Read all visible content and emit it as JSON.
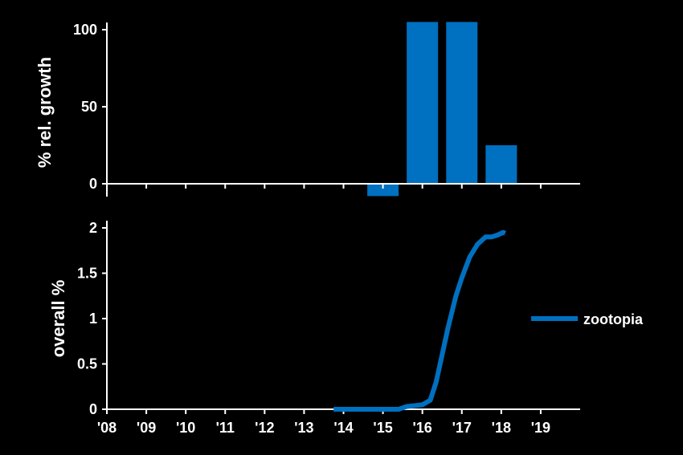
{
  "chart_data": [
    {
      "type": "bar",
      "ylabel": "% rel. growth",
      "xlim": [
        2008,
        2020
      ],
      "ylim": [
        -8,
        105
      ],
      "yticks": [
        0,
        50,
        100
      ],
      "color": "#0070C0",
      "x": [
        2015,
        2016,
        2017,
        2018
      ],
      "values": [
        -8,
        105,
        105,
        25
      ]
    },
    {
      "type": "line",
      "ylabel": "overall %",
      "xlim": [
        2008,
        2020
      ],
      "ylim": [
        0,
        2
      ],
      "yticks": [
        0,
        0.5,
        1,
        1.5,
        2
      ],
      "yticklabels": [
        "0",
        "0.5",
        "1",
        "1.5",
        "2"
      ],
      "xticklabels": [
        "'08",
        "'09",
        "'10",
        "'11",
        "'12",
        "'13",
        "'14",
        "'15",
        "'16",
        "'17",
        "'18",
        "'19"
      ],
      "legend_position": "right",
      "series": [
        {
          "name": "zootopia",
          "color": "#0070C0",
          "x": [
            2013.75,
            2014.5,
            2015.0,
            2015.4,
            2015.6,
            2016.0,
            2016.2,
            2016.35,
            2016.5,
            2016.65,
            2016.85,
            2017.0,
            2017.2,
            2017.4,
            2017.6,
            2017.75,
            2017.9,
            2018.05,
            2018.1
          ],
          "values": [
            0,
            0,
            0,
            0,
            0.03,
            0.05,
            0.1,
            0.3,
            0.6,
            0.9,
            1.25,
            1.45,
            1.68,
            1.82,
            1.9,
            1.9,
            1.92,
            1.95,
            1.94
          ]
        }
      ]
    }
  ]
}
